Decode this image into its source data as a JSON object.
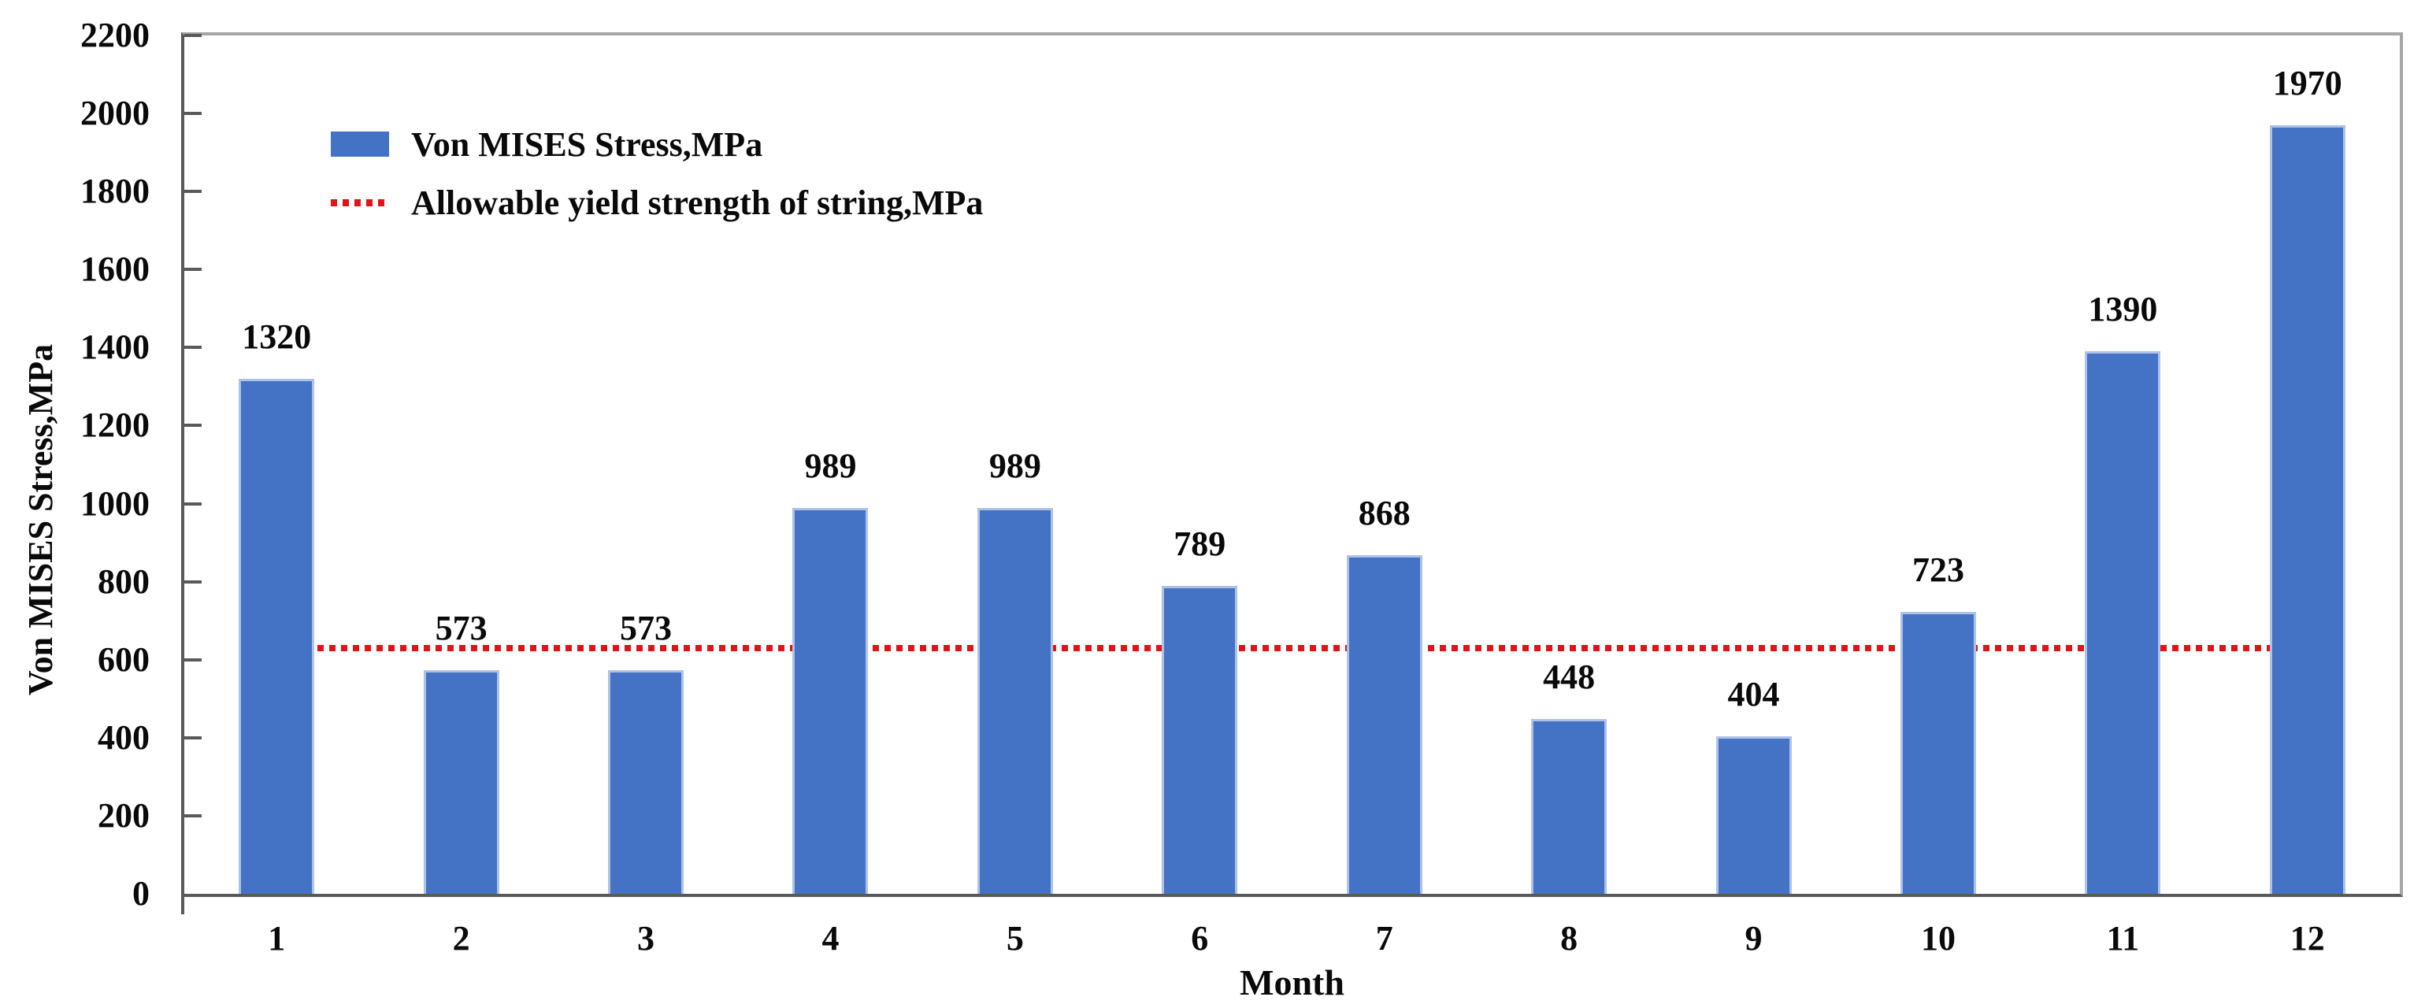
{
  "chart_data": {
    "type": "bar",
    "title": "",
    "xlabel": "Month",
    "ylabel": "Von MISES Stress,MPa",
    "categories": [
      "1",
      "2",
      "3",
      "4",
      "5",
      "6",
      "7",
      "8",
      "9",
      "10",
      "11",
      "12"
    ],
    "series": [
      {
        "name": "Von MISES Stress,MPa",
        "values": [
          1320,
          573,
          573,
          989,
          989,
          789,
          868,
          448,
          404,
          723,
          1390,
          1970
        ],
        "color": "#4472C4"
      }
    ],
    "bar_value_labels": [
      "1320",
      "573",
      "573",
      "989",
      "989",
      "789",
      "868",
      "448",
      "404",
      "723",
      "1390",
      "1970"
    ],
    "threshold_line": {
      "name": "Allowable yield strength of string,MPa",
      "value": 630,
      "color": "#df1418",
      "style": "dotted",
      "extent": "from first bar center to last bar center"
    },
    "ylim": [
      0,
      2200
    ],
    "ytick_step": 200,
    "ytick_labels": [
      "0",
      "200",
      "400",
      "600",
      "800",
      "1000",
      "1200",
      "1400",
      "1600",
      "1800",
      "2000",
      "2200"
    ],
    "grid": false,
    "legend": {
      "position": "upper-left-inside",
      "entries": [
        {
          "label": "Von MISES Stress,MPa",
          "swatch": "blue-filled-rect"
        },
        {
          "label": "Allowable yield strength of string,MPa",
          "swatch": "red-dotted-line"
        }
      ]
    },
    "colors": {
      "bar_fill": "#4472C4",
      "bar_edge": "#aec2e8",
      "threshold_red": "#df1418",
      "axis_dark": "#595959",
      "border_gray": "#a6a6a6",
      "text": "#0a0a0a"
    }
  }
}
